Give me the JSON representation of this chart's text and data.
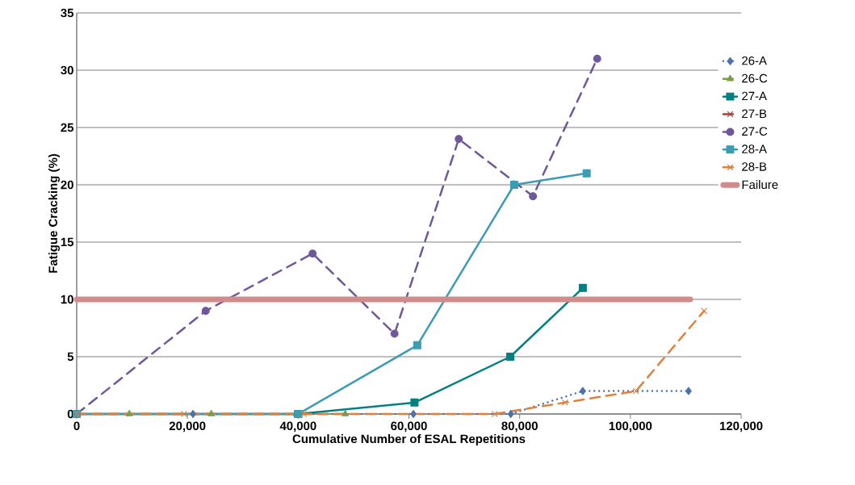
{
  "chart_data": {
    "type": "line",
    "xlabel": "Cumulative Number of  ESAL Repetitions",
    "ylabel": "Fatigue Cracking (%)",
    "xlim": [
      0,
      120000
    ],
    "xticks": [
      0,
      {
        "value": 20000,
        "label": "20,000"
      },
      {
        "value": 40000,
        "label": "40,000"
      },
      {
        "value": 60000,
        "label": "60,000"
      },
      {
        "value": 80000,
        "label": "80,000"
      },
      {
        "value": 100000,
        "label": "100,000"
      },
      {
        "value": 120000,
        "label": "120,000"
      }
    ],
    "ylim": [
      0,
      35
    ],
    "yticks": [
      0,
      5,
      10,
      15,
      20,
      25,
      30,
      35
    ],
    "grid": "y",
    "legend": "right",
    "series": [
      {
        "name": "26-A",
        "color": "#4a72b0",
        "marker": "diamond",
        "line_style": "dotted",
        "x": [
          0,
          21000,
          39700,
          60800,
          78400,
          91400,
          110500
        ],
        "values": [
          0,
          0,
          0,
          0,
          0,
          2,
          2
        ]
      },
      {
        "name": "26-C",
        "color": "#77a043",
        "marker": "triangle",
        "line_style": "dashed",
        "x": [
          0,
          9500,
          24300,
          39700,
          48500
        ],
        "values": [
          0,
          0,
          0,
          0,
          0
        ]
      },
      {
        "name": "27-A",
        "color": "#008080",
        "marker": "square",
        "line_style": "solid",
        "x": [
          0,
          40000,
          61000,
          78300,
          91400
        ],
        "values": [
          0,
          0,
          1,
          5,
          11
        ]
      },
      {
        "name": "27-B",
        "color": "#a5403d",
        "marker": "cross",
        "line_style": "dashed"
      },
      {
        "name": "27-C",
        "color": "#70579c",
        "marker": "circle",
        "line_style": "dashed",
        "x": [
          0,
          23300,
          42600,
          57400,
          69000,
          82400,
          94000
        ],
        "values": [
          0,
          9,
          14,
          7,
          24,
          19,
          31
        ]
      },
      {
        "name": "28-A",
        "color": "#3b9cb4",
        "marker": "square",
        "line_style": "solid",
        "x": [
          0,
          40000,
          61500,
          79000,
          92100
        ],
        "values": [
          0,
          0,
          6,
          20,
          21
        ]
      },
      {
        "name": "28-B",
        "color": "#e0803a",
        "marker": "cross",
        "line_style": "dashed",
        "x": [
          0,
          19400,
          41000,
          75500,
          88200,
          101000,
          113300
        ],
        "values": [
          0,
          0,
          0,
          0,
          1,
          2,
          9
        ]
      },
      {
        "name": "Failure",
        "color": "#d08b8b",
        "marker": "none",
        "line_style": "solid",
        "x": [
          0,
          110800
        ],
        "values": [
          10,
          10
        ]
      }
    ]
  }
}
